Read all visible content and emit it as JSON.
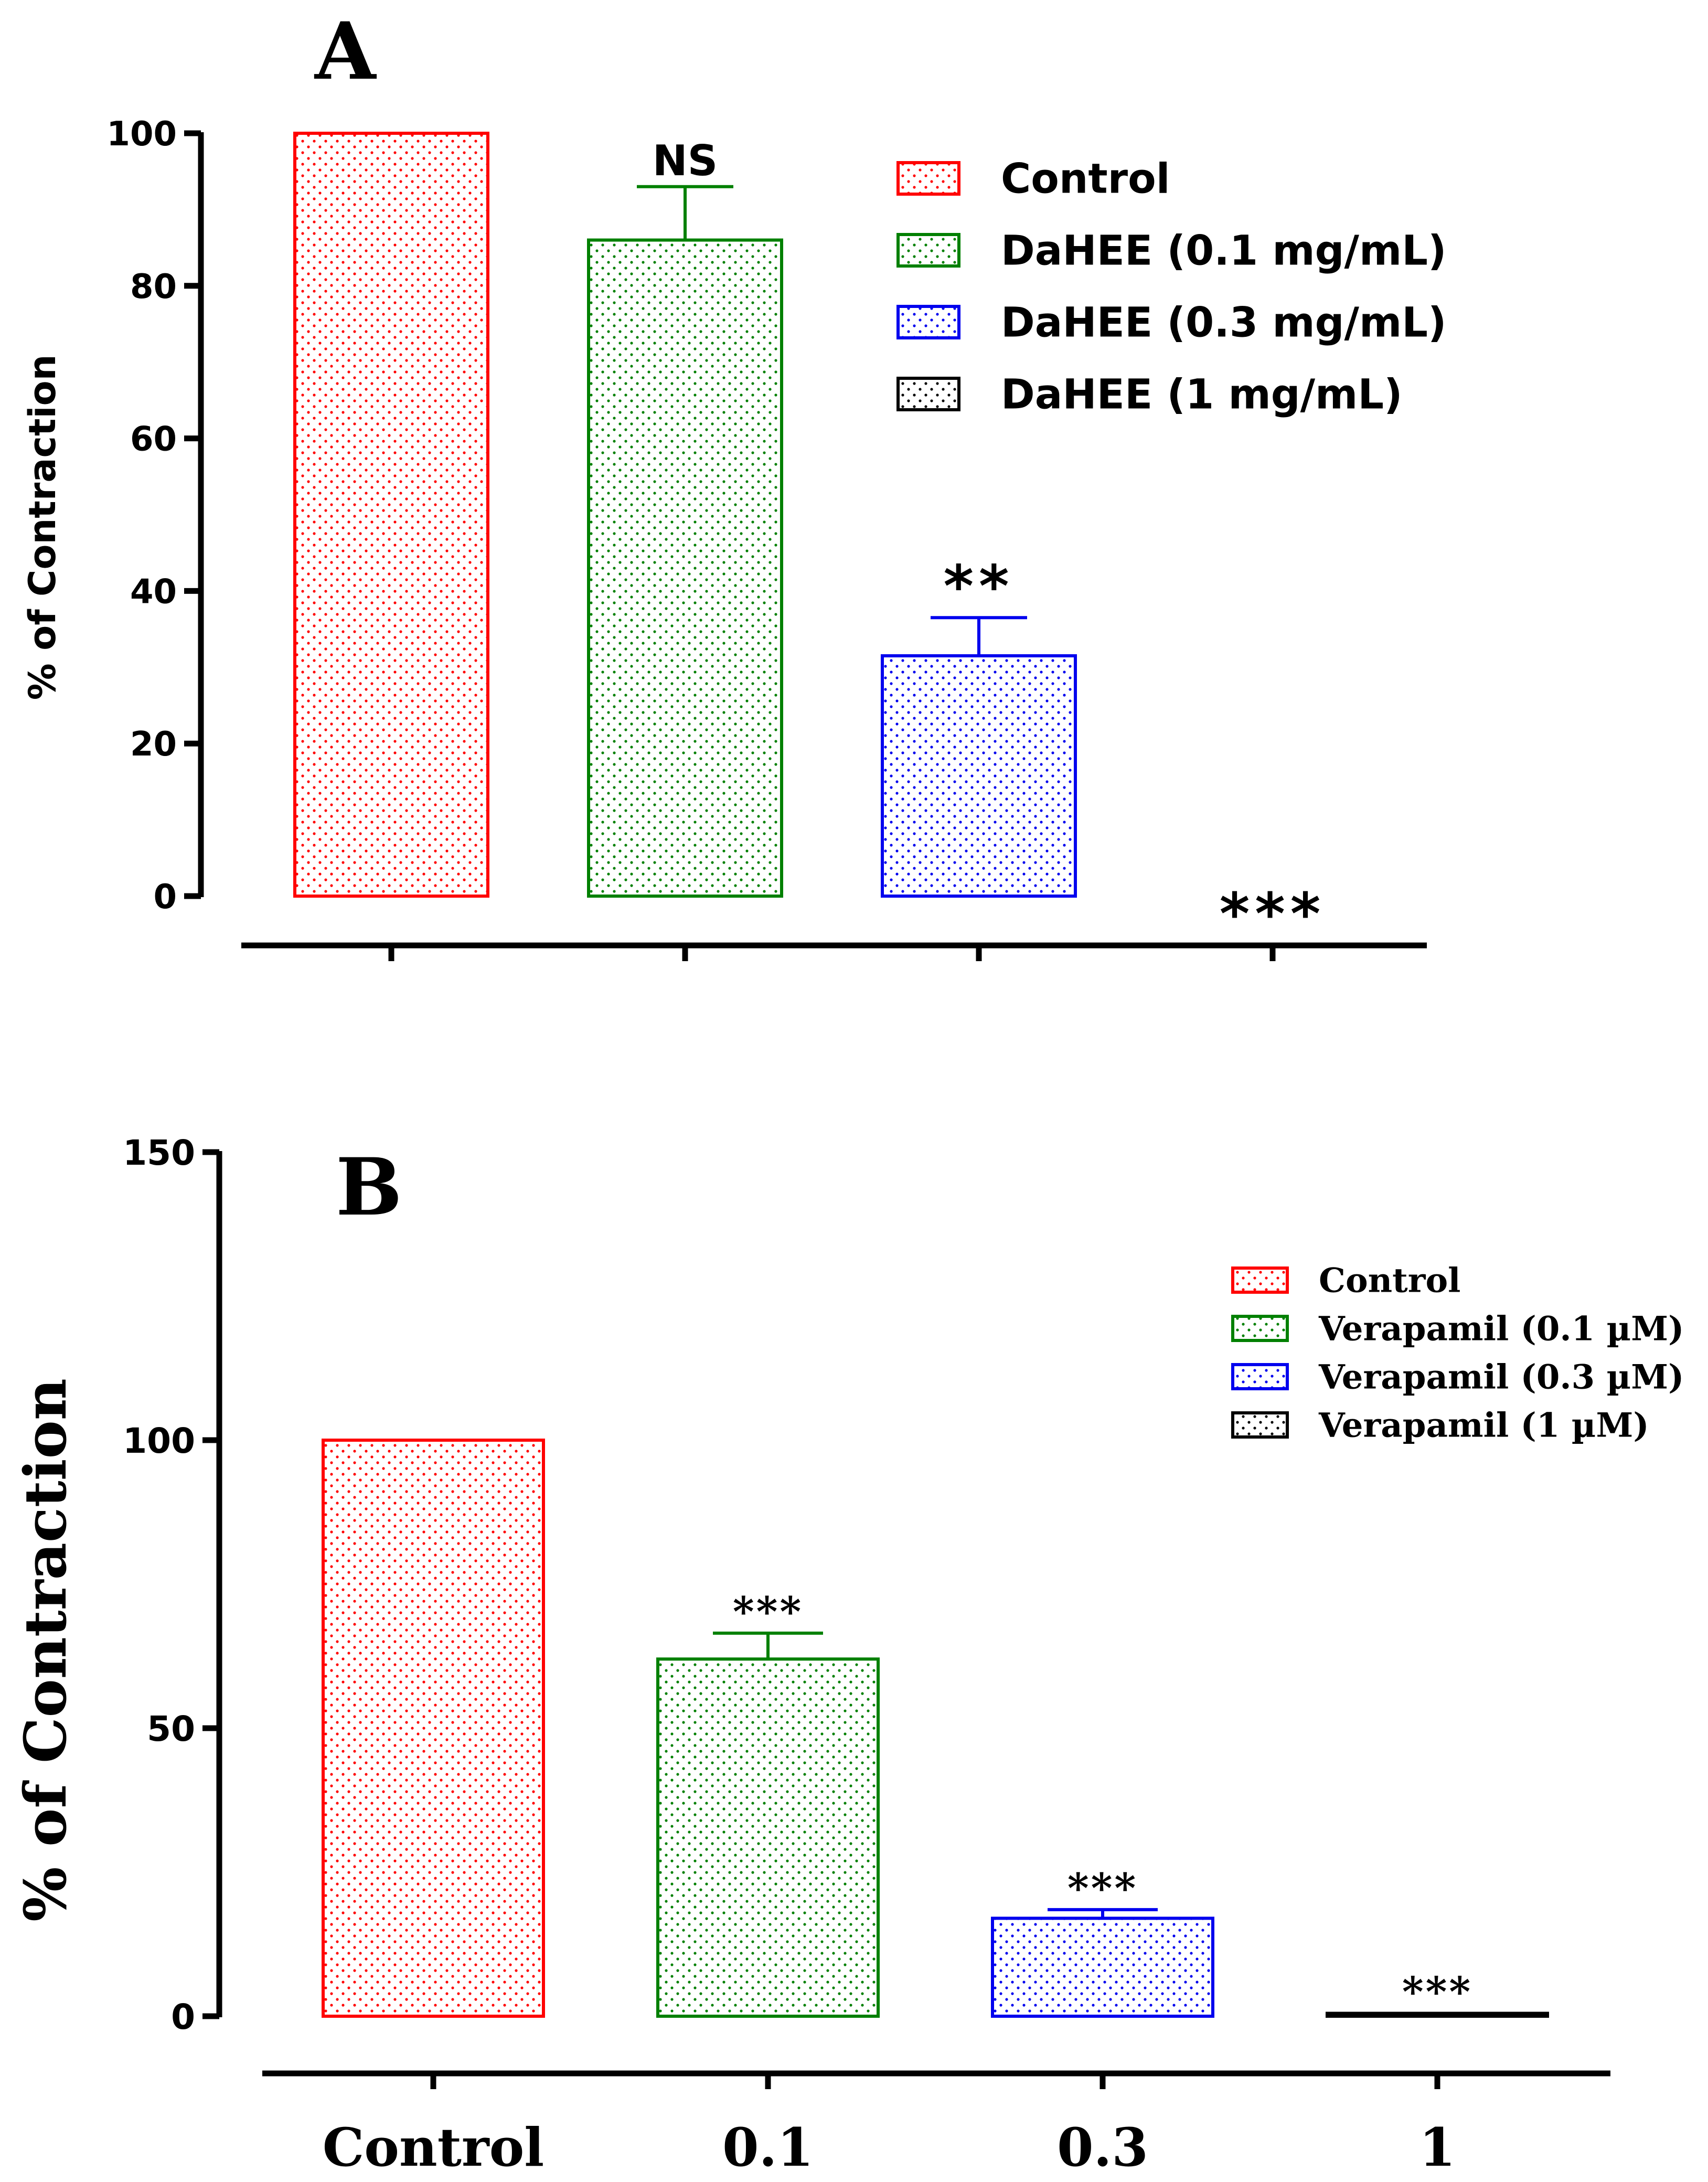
{
  "chart_data": [
    {
      "panel": "A",
      "type": "bar",
      "ylabel": "% of Contraction",
      "ylim": [
        0,
        100
      ],
      "yticks": [
        "0",
        "20",
        "40",
        "60",
        "80",
        "100"
      ],
      "categories": [
        "",
        "",
        "",
        ""
      ],
      "legend_placement": "top-right",
      "series": [
        {
          "name": "Control",
          "value": 100,
          "error": 0,
          "color": "#ff0000",
          "significance": ""
        },
        {
          "name": "DaHEE (0.1 mg/mL)",
          "value": 86,
          "error": 7,
          "color": "#008000",
          "significance": "NS"
        },
        {
          "name": "DaHEE (0.3 mg/mL)",
          "value": 31.5,
          "error": 5,
          "color": "#0000ee",
          "significance": "**"
        },
        {
          "name": "DaHEE (1 mg/mL)",
          "value": 0,
          "error": 0,
          "color": "#000000",
          "significance": "***"
        }
      ]
    },
    {
      "panel": "B",
      "type": "bar",
      "ylabel": "% of Contraction",
      "ylim": [
        0,
        150
      ],
      "yticks": [
        "0",
        "50",
        "100",
        "150"
      ],
      "categories": [
        "Control",
        "0.1",
        "0.3",
        "1"
      ],
      "legend_placement": "top-right",
      "series": [
        {
          "name": "Control",
          "value": 100,
          "error": 0,
          "color": "#ff0000",
          "significance": ""
        },
        {
          "name": "Verapamil (0.1 µM)",
          "value": 62,
          "error": 4.5,
          "color": "#008000",
          "significance": "***"
        },
        {
          "name": "Verapamil (0.3 µM)",
          "value": 17,
          "error": 1.5,
          "color": "#0000ee",
          "significance": "***"
        },
        {
          "name": "Verapamil (1 µM)",
          "value": 0.5,
          "error": 0,
          "color": "#000000",
          "significance": "***"
        }
      ]
    }
  ]
}
